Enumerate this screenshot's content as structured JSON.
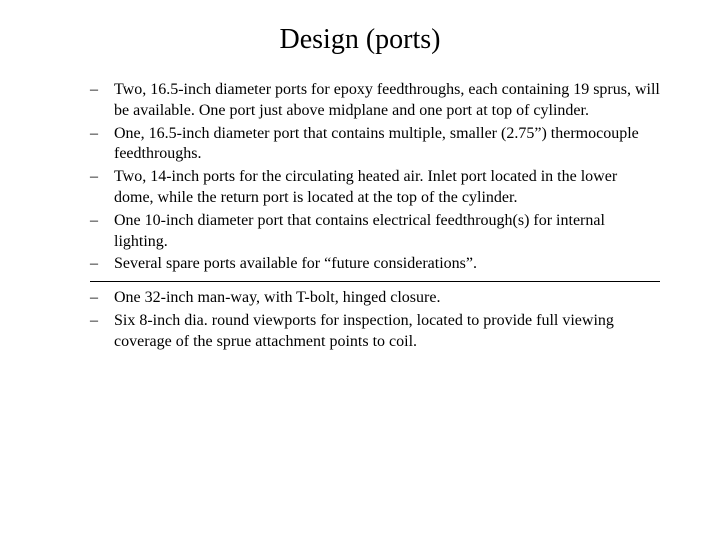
{
  "title": "Design (ports)",
  "group1": {
    "items": [
      "Two, 16.5-inch diameter ports for epoxy feedthroughs, each containing 19 sprus, will be available.  One port just above midplane and one port at top of cylinder.",
      "One, 16.5-inch diameter port that contains multiple, smaller (2.75”) thermocouple feedthroughs.",
      "Two, 14-inch ports for the circulating heated air.  Inlet port located in the lower dome, while the return port is located at the top of the cylinder.",
      "One 10-inch diameter port that contains electrical feedthrough(s) for internal lighting.",
      "Several spare ports available for “future considerations”."
    ]
  },
  "group2": {
    "items": [
      "One 32-inch man-way, with T-bolt, hinged closure.",
      "Six 8-inch dia. round viewports for inspection, located to provide full viewing coverage of the sprue attachment points to coil."
    ]
  },
  "colors": {
    "background": "#ffffff",
    "text": "#000000",
    "hr": "#000000"
  },
  "typography": {
    "title_fontsize": 28,
    "body_fontsize": 16,
    "font_family": "Times New Roman"
  }
}
